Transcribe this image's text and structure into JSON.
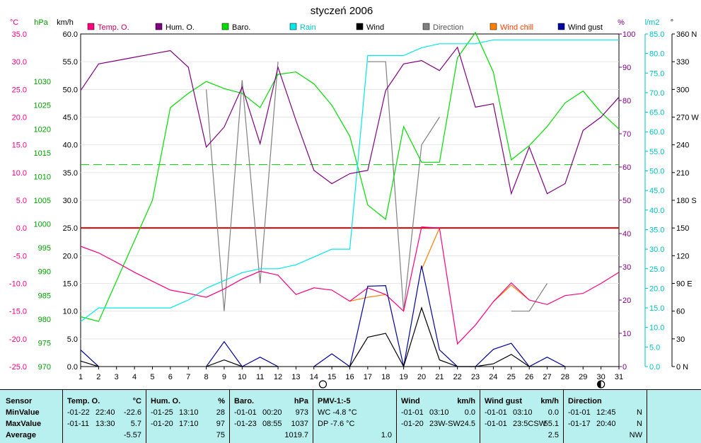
{
  "title": "styczeń 2006",
  "axis_units": {
    "temp": "°C",
    "baro": "hPa",
    "wind": "km/h",
    "hum": "%",
    "rain": "l/m2",
    "dir": "°"
  },
  "legend": [
    {
      "label": "Temp. O.",
      "color": "#ff0080"
    },
    {
      "label": "Hum. O.",
      "color": "#800080"
    },
    {
      "label": "Baro.",
      "color": "#00dd00"
    },
    {
      "label": "Rain",
      "color": "#00e8e8"
    },
    {
      "label": "Wind",
      "color": "#000000"
    },
    {
      "label": "Direction",
      "color": "#808080"
    },
    {
      "label": "Wind chill",
      "color": "#ff8000"
    },
    {
      "label": "Wind gust",
      "color": "#0000a0"
    }
  ],
  "moon_phase_markers": [
    {
      "day": 14.5,
      "phase": "full"
    },
    {
      "day": 30,
      "phase": "new"
    }
  ],
  "chart_data": {
    "type": "line",
    "x_label": "day",
    "x": [
      1,
      2,
      3,
      4,
      5,
      6,
      7,
      8,
      9,
      10,
      11,
      12,
      13,
      14,
      15,
      16,
      17,
      18,
      19,
      20,
      21,
      22,
      23,
      24,
      25,
      26,
      27,
      28,
      29,
      30,
      31
    ],
    "axes": {
      "temp": {
        "min": -25,
        "max": 35,
        "step": 5,
        "unit": "°C",
        "color": "#ff0080"
      },
      "baro": {
        "min": 970,
        "max": 1040,
        "step": 5,
        "unit": "hPa",
        "color": "#00a000"
      },
      "wind": {
        "min": 0,
        "max": 60,
        "step": 5,
        "unit": "km/h",
        "color": "#000000"
      },
      "hum": {
        "min": 0,
        "max": 100,
        "step": 10,
        "unit": "%",
        "color": "#800080"
      },
      "rain": {
        "min": 0,
        "max": 85,
        "step": 5,
        "unit": "l/m2",
        "color": "#00c0c0"
      },
      "dir": {
        "min": 0,
        "max": 360,
        "step": 30,
        "unit": "°",
        "color": "#000000",
        "labels": {
          "0": "N",
          "90": "E",
          "180": "S",
          "270": "W",
          "360": "N"
        }
      }
    },
    "reference_lines": [
      {
        "axis": "temp",
        "value": 0,
        "color": "#dd0000"
      },
      {
        "axis": "baro",
        "value": 1012.5,
        "color": "#00cc00",
        "dashed": true
      }
    ],
    "series": [
      {
        "name": "Temp. O.",
        "axis": "temp",
        "color": "#ff0080",
        "values": [
          -3.3,
          -4.5,
          -6.2,
          -8.0,
          -9.6,
          -11.2,
          -11.8,
          -12.5,
          -11.0,
          -9.2,
          -7.8,
          -8.5,
          -12.0,
          -10.8,
          -11.2,
          -13.2,
          -10.8,
          -12.0,
          -15.0,
          0.2,
          0.0,
          -20.9,
          -17.5,
          -13.3,
          -9.9,
          -13.0,
          -13.8,
          -12.2,
          -11.8,
          -10.0,
          -8.0
        ]
      },
      {
        "name": "Hum. O.",
        "axis": "hum",
        "color": "#800080",
        "values": [
          83,
          91,
          92,
          93,
          94,
          95,
          90,
          66,
          72,
          84,
          67,
          90,
          74,
          59,
          55,
          58,
          59,
          83,
          91,
          92,
          89,
          96,
          78,
          79,
          52,
          66,
          52,
          55,
          71,
          75,
          81
        ]
      },
      {
        "name": "Baro.",
        "axis": "baro",
        "color": "#00dd00",
        "values": [
          980.5,
          979.5,
          988.0,
          996.5,
          1005.0,
          1024.5,
          1027.5,
          1030.0,
          1028.5,
          1027.5,
          1024.5,
          1031.5,
          1032.0,
          1029.5,
          1025.0,
          1018.5,
          1004.0,
          1001.0,
          1020.5,
          1013.0,
          1013.0,
          1035.0,
          1041.0,
          1032.0,
          1013.5,
          1016.5,
          1020.5,
          1025.5,
          1028.0,
          1023.5,
          1020.0
        ]
      },
      {
        "name": "Rain",
        "axis": "rain",
        "color": "#00e8e8",
        "values": [
          11.5,
          15.0,
          15.0,
          15.0,
          15.0,
          15.0,
          17.0,
          20.0,
          22.0,
          24.0,
          25.0,
          25.0,
          26.0,
          28.0,
          30.0,
          30.0,
          79.5,
          79.5,
          79.5,
          81.5,
          82.5,
          82.5,
          82.5,
          83.5,
          83.5,
          83.5,
          83.5,
          83.5,
          83.5,
          83.5,
          83.5
        ]
      },
      {
        "name": "Wind",
        "axis": "wind",
        "color": "#000000",
        "values": [
          1.0,
          0.0,
          null,
          null,
          null,
          null,
          null,
          0.0,
          1.2,
          0.0,
          0.0,
          0.0,
          null,
          0.0,
          0.0,
          0.0,
          5.3,
          6.0,
          0.0,
          10.6,
          1.2,
          0.0,
          0.0,
          0.5,
          2.2,
          0.0,
          0.0,
          0.0,
          null,
          null,
          null
        ]
      },
      {
        "name": "Direction",
        "axis": "dir",
        "color": "#808080",
        "values": [
          null,
          null,
          null,
          null,
          null,
          null,
          null,
          300,
          60,
          310,
          90,
          330,
          null,
          null,
          null,
          null,
          330,
          330,
          60,
          240,
          270,
          null,
          null,
          null,
          60,
          60,
          90,
          null,
          null,
          null,
          null
        ]
      },
      {
        "name": "Wind chill",
        "axis": "temp",
        "color": "#ff8000",
        "values": [
          null,
          null,
          null,
          null,
          null,
          null,
          null,
          null,
          null,
          null,
          null,
          null,
          null,
          null,
          null,
          -13.2,
          -12.5,
          -12.0,
          null,
          -7.5,
          0.0,
          null,
          null,
          -13.3,
          -10.3,
          -13.0,
          null,
          null,
          null,
          null,
          null
        ]
      },
      {
        "name": "Wind gust",
        "axis": "wind",
        "color": "#0000a0",
        "values": [
          3.0,
          0.0,
          null,
          null,
          null,
          null,
          null,
          0.0,
          4.5,
          0.0,
          1.7,
          0.0,
          null,
          0.0,
          2.3,
          0.0,
          14.5,
          14.6,
          0.0,
          18.2,
          3.0,
          0.0,
          0.0,
          3.1,
          4.2,
          0.0,
          1.7,
          0.0,
          null,
          null,
          null
        ]
      }
    ]
  },
  "stats": {
    "sensor": {
      "header": "Sensor",
      "rows": [
        "MinValue",
        "MaxValue",
        "Average"
      ]
    },
    "temp": {
      "header": "Temp. O.",
      "unit": "°C",
      "min": {
        "date": "-01-22",
        "time": "22:40",
        "value": "-22.6"
      },
      "max": {
        "date": "-01-11",
        "time": "13:30",
        "value": "5.7"
      },
      "avg": "-5.57"
    },
    "hum": {
      "header": "Hum. O.",
      "unit": "%",
      "min": {
        "date": "-01-25",
        "time": "13:10",
        "value": "28"
      },
      "max": {
        "date": "-01-20",
        "time": "17:10",
        "value": "97"
      },
      "avg": "75"
    },
    "baro": {
      "header": "Baro.",
      "unit": "hPa",
      "min": {
        "date": "-01-01",
        "time": "00:20",
        "value": "973"
      },
      "max": {
        "date": "-01-23",
        "time": "08:55",
        "value": "1037"
      },
      "avg": "1019.7"
    },
    "pmv": {
      "header": "PMV-1:-5",
      "wc": "WC -4.8 °C",
      "dp": "DP -7.6 °C",
      "value": "1.0"
    },
    "wind": {
      "header": "Wind",
      "unit": "km/h",
      "min": {
        "date": "-01-01",
        "time": "03:10",
        "value": "0.0"
      },
      "max": {
        "date": "-01-20",
        "time": "23W-SW",
        "value": "24.5"
      }
    },
    "gust": {
      "header": "Wind gust",
      "unit": "km/h",
      "min": {
        "date": "-01-01",
        "time": "03:10",
        "value": "0.0"
      },
      "max": {
        "date": "-01-01",
        "time": "23:5CSW",
        "value": "55.1"
      },
      "avg": "2.5"
    },
    "direction": {
      "header": "Direction",
      "min": {
        "date": "-01-01",
        "time": "12:45",
        "value": "N"
      },
      "max": {
        "date": "-01-17",
        "time": "20:40",
        "value": "N"
      },
      "avg": "NW"
    }
  }
}
